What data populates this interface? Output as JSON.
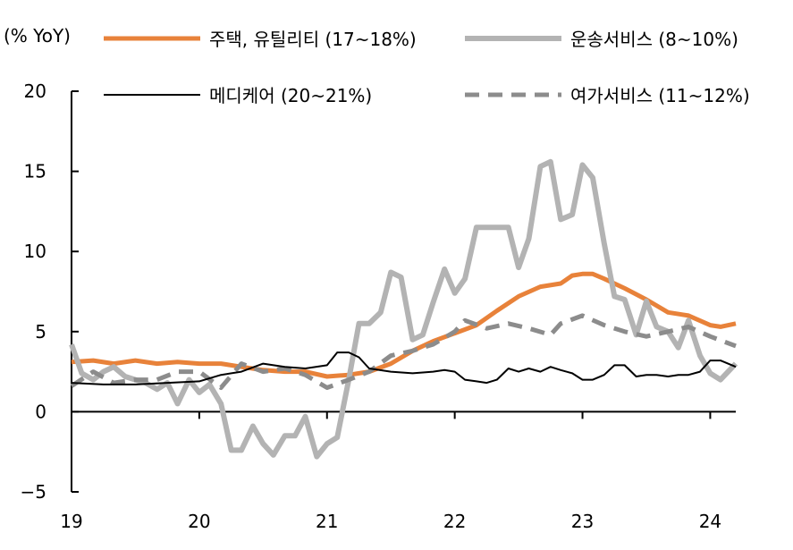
{
  "chart_data": {
    "type": "line",
    "unit_label": "(% YoY)",
    "xlim": [
      2019.0,
      2024.2
    ],
    "ylim": [
      -5,
      20
    ],
    "x_ticks": [
      19,
      20,
      21,
      22,
      23,
      24
    ],
    "y_ticks": [
      20,
      15,
      10,
      5,
      0,
      -5
    ],
    "series": [
      {
        "name": "주택, 유틸리티 (17~18%)",
        "color": "#E8823A",
        "style": "solid",
        "width": 5,
        "points": [
          [
            2019.0,
            3.1
          ],
          [
            2019.17,
            3.2
          ],
          [
            2019.33,
            3.0
          ],
          [
            2019.5,
            3.2
          ],
          [
            2019.67,
            3.0
          ],
          [
            2019.83,
            3.1
          ],
          [
            2020.0,
            3.0
          ],
          [
            2020.17,
            3.0
          ],
          [
            2020.33,
            2.8
          ],
          [
            2020.5,
            2.6
          ],
          [
            2020.67,
            2.5
          ],
          [
            2020.83,
            2.5
          ],
          [
            2021.0,
            2.2
          ],
          [
            2021.17,
            2.3
          ],
          [
            2021.33,
            2.5
          ],
          [
            2021.5,
            3.0
          ],
          [
            2021.67,
            3.8
          ],
          [
            2021.83,
            4.4
          ],
          [
            2022.0,
            4.9
          ],
          [
            2022.17,
            5.4
          ],
          [
            2022.33,
            6.3
          ],
          [
            2022.5,
            7.2
          ],
          [
            2022.67,
            7.8
          ],
          [
            2022.83,
            8.0
          ],
          [
            2022.92,
            8.5
          ],
          [
            2023.0,
            8.6
          ],
          [
            2023.08,
            8.6
          ],
          [
            2023.17,
            8.3
          ],
          [
            2023.33,
            7.7
          ],
          [
            2023.5,
            7.0
          ],
          [
            2023.67,
            6.2
          ],
          [
            2023.83,
            6.0
          ],
          [
            2024.0,
            5.4
          ],
          [
            2024.08,
            5.3
          ],
          [
            2024.2,
            5.5
          ]
        ]
      },
      {
        "name": "운송서비스 (8~10%)",
        "color": "#B3B3B3",
        "style": "solid",
        "width": 6,
        "points": [
          [
            2019.0,
            4.2
          ],
          [
            2019.08,
            2.4
          ],
          [
            2019.17,
            2.0
          ],
          [
            2019.25,
            2.5
          ],
          [
            2019.33,
            2.8
          ],
          [
            2019.42,
            2.2
          ],
          [
            2019.5,
            2.0
          ],
          [
            2019.58,
            1.8
          ],
          [
            2019.67,
            1.4
          ],
          [
            2019.75,
            1.8
          ],
          [
            2019.83,
            0.5
          ],
          [
            2019.92,
            2.0
          ],
          [
            2020.0,
            1.2
          ],
          [
            2020.08,
            1.7
          ],
          [
            2020.17,
            0.5
          ],
          [
            2020.25,
            -2.4
          ],
          [
            2020.33,
            -2.4
          ],
          [
            2020.42,
            -0.9
          ],
          [
            2020.5,
            -2.0
          ],
          [
            2020.58,
            -2.7
          ],
          [
            2020.67,
            -1.5
          ],
          [
            2020.75,
            -1.5
          ],
          [
            2020.83,
            -0.3
          ],
          [
            2020.92,
            -2.8
          ],
          [
            2021.0,
            -2.0
          ],
          [
            2021.08,
            -1.6
          ],
          [
            2021.17,
            2.0
          ],
          [
            2021.25,
            5.5
          ],
          [
            2021.33,
            5.5
          ],
          [
            2021.42,
            6.2
          ],
          [
            2021.5,
            8.7
          ],
          [
            2021.58,
            8.4
          ],
          [
            2021.67,
            4.5
          ],
          [
            2021.75,
            4.8
          ],
          [
            2021.83,
            6.8
          ],
          [
            2021.92,
            8.9
          ],
          [
            2022.0,
            7.4
          ],
          [
            2022.08,
            8.3
          ],
          [
            2022.17,
            11.5
          ],
          [
            2022.25,
            11.5
          ],
          [
            2022.33,
            11.5
          ],
          [
            2022.42,
            11.5
          ],
          [
            2022.5,
            9.0
          ],
          [
            2022.58,
            10.8
          ],
          [
            2022.67,
            15.3
          ],
          [
            2022.75,
            15.6
          ],
          [
            2022.83,
            12.0
          ],
          [
            2022.92,
            12.3
          ],
          [
            2023.0,
            15.4
          ],
          [
            2023.08,
            14.6
          ],
          [
            2023.17,
            10.5
          ],
          [
            2023.25,
            7.2
          ],
          [
            2023.33,
            7.0
          ],
          [
            2023.42,
            4.8
          ],
          [
            2023.5,
            6.9
          ],
          [
            2023.58,
            5.3
          ],
          [
            2023.67,
            5.0
          ],
          [
            2023.75,
            4.0
          ],
          [
            2023.83,
            5.7
          ],
          [
            2023.92,
            3.5
          ],
          [
            2024.0,
            2.4
          ],
          [
            2024.08,
            2.0
          ],
          [
            2024.2,
            3.0
          ]
        ]
      },
      {
        "name": "메디케어 (20~21%)",
        "color": "#000000",
        "style": "solid",
        "width": 2,
        "points": [
          [
            2019.0,
            1.8
          ],
          [
            2019.25,
            1.7
          ],
          [
            2019.5,
            1.7
          ],
          [
            2019.75,
            1.8
          ],
          [
            2020.0,
            1.9
          ],
          [
            2020.17,
            2.3
          ],
          [
            2020.33,
            2.5
          ],
          [
            2020.5,
            3.0
          ],
          [
            2020.67,
            2.8
          ],
          [
            2020.83,
            2.7
          ],
          [
            2021.0,
            2.9
          ],
          [
            2021.08,
            3.7
          ],
          [
            2021.17,
            3.7
          ],
          [
            2021.25,
            3.4
          ],
          [
            2021.33,
            2.7
          ],
          [
            2021.5,
            2.5
          ],
          [
            2021.67,
            2.4
          ],
          [
            2021.83,
            2.5
          ],
          [
            2021.92,
            2.6
          ],
          [
            2022.0,
            2.5
          ],
          [
            2022.08,
            2.0
          ],
          [
            2022.17,
            1.9
          ],
          [
            2022.25,
            1.8
          ],
          [
            2022.33,
            2.0
          ],
          [
            2022.42,
            2.7
          ],
          [
            2022.5,
            2.5
          ],
          [
            2022.58,
            2.7
          ],
          [
            2022.67,
            2.5
          ],
          [
            2022.75,
            2.8
          ],
          [
            2022.83,
            2.6
          ],
          [
            2022.92,
            2.4
          ],
          [
            2023.0,
            2.0
          ],
          [
            2023.08,
            2.0
          ],
          [
            2023.17,
            2.3
          ],
          [
            2023.25,
            2.9
          ],
          [
            2023.33,
            2.9
          ],
          [
            2023.42,
            2.2
          ],
          [
            2023.5,
            2.3
          ],
          [
            2023.58,
            2.3
          ],
          [
            2023.67,
            2.2
          ],
          [
            2023.75,
            2.3
          ],
          [
            2023.83,
            2.3
          ],
          [
            2023.92,
            2.5
          ],
          [
            2024.0,
            3.2
          ],
          [
            2024.08,
            3.2
          ],
          [
            2024.2,
            2.8
          ]
        ]
      },
      {
        "name": "여가서비스 (11~12%)",
        "color": "#8C8C8C",
        "style": "dashed",
        "width": 5,
        "points": [
          [
            2019.0,
            1.6
          ],
          [
            2019.17,
            2.5
          ],
          [
            2019.33,
            1.8
          ],
          [
            2019.5,
            2.0
          ],
          [
            2019.67,
            2.0
          ],
          [
            2019.83,
            2.5
          ],
          [
            2020.0,
            2.5
          ],
          [
            2020.17,
            1.5
          ],
          [
            2020.33,
            3.0
          ],
          [
            2020.5,
            2.5
          ],
          [
            2020.67,
            2.7
          ],
          [
            2020.83,
            2.3
          ],
          [
            2021.0,
            1.5
          ],
          [
            2021.17,
            2.0
          ],
          [
            2021.33,
            2.5
          ],
          [
            2021.5,
            3.5
          ],
          [
            2021.67,
            3.8
          ],
          [
            2021.83,
            4.2
          ],
          [
            2022.0,
            5.0
          ],
          [
            2022.08,
            5.7
          ],
          [
            2022.25,
            5.2
          ],
          [
            2022.42,
            5.5
          ],
          [
            2022.58,
            5.2
          ],
          [
            2022.75,
            4.8
          ],
          [
            2022.83,
            5.5
          ],
          [
            2023.0,
            6.0
          ],
          [
            2023.17,
            5.4
          ],
          [
            2023.33,
            5.0
          ],
          [
            2023.5,
            4.7
          ],
          [
            2023.67,
            5.0
          ],
          [
            2023.83,
            5.3
          ],
          [
            2024.0,
            4.7
          ],
          [
            2024.2,
            4.1
          ]
        ]
      }
    ]
  }
}
